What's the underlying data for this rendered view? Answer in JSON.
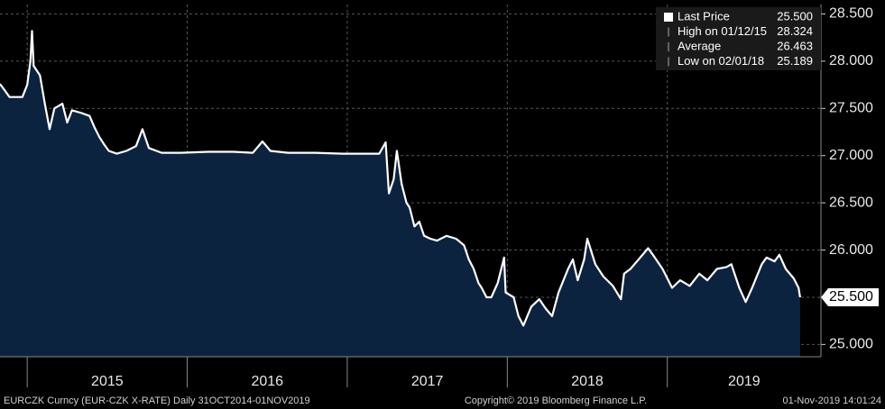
{
  "chart_data": {
    "type": "area_line",
    "series": [
      {
        "name": "Last Price",
        "color": "#ffffff",
        "fill": "#0c2340",
        "x": [
          2014.83,
          2014.89,
          2014.97,
          2015.0,
          2015.02,
          2015.03,
          2015.04,
          2015.08,
          2015.11,
          2015.14,
          2015.17,
          2015.22,
          2015.25,
          2015.28,
          2015.34,
          2015.39,
          2015.42,
          2015.45,
          2015.48,
          2015.51,
          2015.56,
          2015.62,
          2015.68,
          2015.72,
          2015.76,
          2015.84,
          2015.96,
          2016.13,
          2016.29,
          2016.41,
          2016.47,
          2016.52,
          2016.63,
          2016.8,
          2016.97,
          2017.2,
          2017.24,
          2017.26,
          2017.29,
          2017.31,
          2017.34,
          2017.37,
          2017.39,
          2017.42,
          2017.45,
          2017.48,
          2017.52,
          2017.56,
          2017.62,
          2017.68,
          2017.73,
          2017.76,
          2017.79,
          2017.82,
          2017.84,
          2017.87,
          2017.9,
          2017.94,
          2017.98,
          2017.99,
          2018.04,
          2018.07,
          2018.1,
          2018.15,
          2018.2,
          2018.24,
          2018.28,
          2018.32,
          2018.38,
          2018.41,
          2018.44,
          2018.48,
          2018.5,
          2018.55,
          2018.6,
          2018.66,
          2018.71,
          2018.73,
          2018.77,
          2018.83,
          2018.88,
          2018.91,
          2018.97,
          2019.03,
          2019.08,
          2019.14,
          2019.2,
          2019.25,
          2019.31,
          2019.37,
          2019.4,
          2019.45,
          2019.49,
          2019.53,
          2019.59,
          2019.62,
          2019.67,
          2019.7,
          2019.74,
          2019.79,
          2019.82,
          2019.83
        ],
        "values": [
          27.76,
          27.62,
          27.62,
          27.75,
          28.0,
          28.32,
          27.95,
          27.85,
          27.55,
          27.28,
          27.5,
          27.55,
          27.35,
          27.48,
          27.45,
          27.42,
          27.3,
          27.2,
          27.12,
          27.05,
          27.02,
          27.05,
          27.1,
          27.28,
          27.08,
          27.03,
          27.03,
          27.04,
          27.04,
          27.03,
          27.15,
          27.05,
          27.03,
          27.03,
          27.02,
          27.02,
          27.14,
          26.6,
          26.75,
          27.05,
          26.7,
          26.5,
          26.45,
          26.25,
          26.3,
          26.15,
          26.12,
          26.1,
          26.15,
          26.12,
          26.05,
          25.9,
          25.8,
          25.65,
          25.6,
          25.5,
          25.5,
          25.65,
          25.92,
          25.55,
          25.5,
          25.3,
          25.2,
          25.4,
          25.48,
          25.38,
          25.3,
          25.55,
          25.8,
          25.9,
          25.68,
          25.9,
          26.12,
          25.85,
          25.72,
          25.62,
          25.48,
          25.75,
          25.8,
          25.92,
          26.02,
          25.95,
          25.8,
          25.6,
          25.68,
          25.62,
          25.75,
          25.68,
          25.8,
          25.82,
          25.85,
          25.6,
          25.45,
          25.6,
          25.85,
          25.92,
          25.88,
          25.95,
          25.8,
          25.7,
          25.6,
          25.5
        ]
      }
    ],
    "stats": [
      {
        "label": "High on 01/12/15",
        "value": 28.324,
        "value_label": "28.324"
      },
      {
        "label": "Average",
        "value": 26.463,
        "value_label": "26.463"
      },
      {
        "label": "Low on 02/01/18",
        "value": 25.189,
        "value_label": "25.189"
      }
    ],
    "last_value": {
      "value": 25.5,
      "label": "25.500"
    },
    "xlim": [
      2014.83,
      2019.96
    ],
    "xticks": [
      {
        "value": 2015,
        "label": "2015"
      },
      {
        "value": 2016,
        "label": "2016"
      },
      {
        "value": 2017,
        "label": "2017"
      },
      {
        "value": 2018,
        "label": "2018"
      },
      {
        "value": 2019,
        "label": "2019"
      }
    ],
    "ylim": [
      24.87,
      28.6
    ],
    "yticks": [
      {
        "value": 25,
        "label": "25.000"
      },
      {
        "value": 25.5,
        "label": "25.500"
      },
      {
        "value": 26,
        "label": "26.000"
      },
      {
        "value": 26.5,
        "label": "26.500"
      },
      {
        "value": 27,
        "label": "27.000"
      },
      {
        "value": 27.5,
        "label": "27.500"
      },
      {
        "value": 28,
        "label": "28.000"
      },
      {
        "value": 28.5,
        "label": "28.500"
      }
    ],
    "grid": true,
    "legend_position": "upper right",
    "footer": {
      "left": "EURCZK Curncy (EUR-CZK X-RATE)  Daily 31OCT2014-01NOV2019",
      "center": "Copyright© 2019 Bloomberg Finance L.P.",
      "right": "01-Nov-2019 14:01:24"
    }
  }
}
